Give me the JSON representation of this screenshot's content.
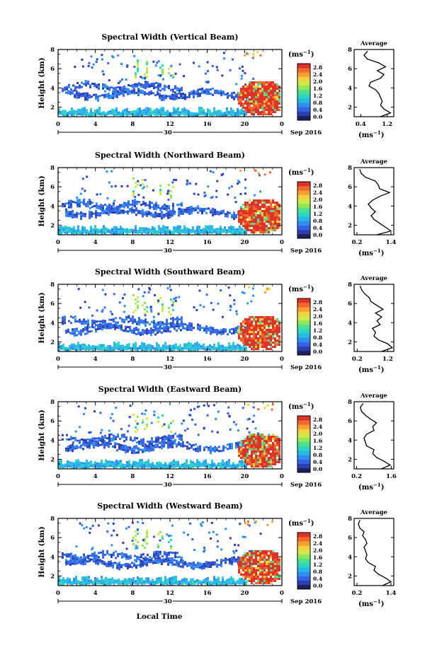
{
  "shared": {
    "ylabel": "Height (km)",
    "xlabel": "Local Time",
    "x_ticks": [
      "0",
      "4",
      "8",
      "12",
      "16",
      "20",
      "0"
    ],
    "y_ticks": [
      "2",
      "4",
      "6",
      "8"
    ],
    "date_day": "30",
    "date_month": "Sep 2016",
    "colorbar_unit_base": "(ms",
    "colorbar_unit_exp": "−1",
    "colorbar_unit_close": ")",
    "avg_title": "Average",
    "avg_unit_base": "(ms",
    "avg_unit_exp": "−1",
    "avg_unit_close": ")",
    "palette": [
      "#1f1f5e",
      "#2a3fb0",
      "#3563e8",
      "#2f8fef",
      "#26b9e6",
      "#29d6c2",
      "#4de08f",
      "#8fe85a",
      "#cfe84a",
      "#f2d23c",
      "#f6a032",
      "#f26a2a",
      "#e0322a"
    ]
  },
  "chart_data": [
    {
      "type": "heatmap",
      "title": "Spectral Width (Vertical Beam)",
      "colorbar_ticks": [
        "2.8",
        "2.4",
        "2.0",
        "1.6",
        "1.2",
        "0.8",
        "0.4",
        "0.0"
      ],
      "x_range_hours": [
        0,
        24
      ],
      "y_range_km": [
        1,
        8
      ],
      "average_profile": {
        "title": "Average",
        "x_ticks": [
          "0.4",
          "1.2"
        ],
        "x_range": [
          0.2,
          1.4
        ],
        "y_range_km": [
          1,
          8
        ],
        "height_km": [
          1.0,
          1.4,
          1.8,
          2.2,
          2.6,
          3.0,
          3.4,
          3.8,
          4.2,
          4.6,
          5.0,
          5.4,
          5.8,
          6.2,
          6.6,
          7.0,
          7.4,
          7.8
        ],
        "width": [
          1.0,
          1.3,
          1.1,
          1.0,
          1.05,
          1.0,
          0.95,
          0.85,
          0.65,
          0.7,
          1.0,
          1.1,
          0.9,
          1.15,
          0.95,
          0.6,
          0.5,
          0.6
        ]
      }
    },
    {
      "type": "heatmap",
      "title": "Spectral Width (Northward Beam)",
      "colorbar_ticks": [
        "2.8",
        "2.4",
        "2.0",
        "1.6",
        "1.2",
        "0.8",
        "0.4",
        "0.0"
      ],
      "x_range_hours": [
        0,
        24
      ],
      "y_range_km": [
        1,
        8
      ],
      "average_profile": {
        "title": "Average",
        "x_ticks": [
          "0.2",
          "1.4"
        ],
        "x_range": [
          0.1,
          1.5
        ],
        "y_range_km": [
          1,
          8
        ],
        "height_km": [
          1.0,
          1.4,
          1.8,
          2.2,
          2.6,
          3.0,
          3.4,
          3.8,
          4.2,
          4.6,
          5.0,
          5.4,
          5.8,
          6.2,
          6.6,
          7.0,
          7.4,
          7.8
        ],
        "width": [
          0.9,
          1.4,
          1.2,
          1.0,
          0.8,
          0.7,
          0.85,
          0.7,
          0.6,
          0.75,
          1.0,
          1.35,
          1.0,
          0.95,
          0.85,
          0.5,
          0.35,
          0.3
        ]
      }
    },
    {
      "type": "heatmap",
      "title": "Spectral Width (Southward Beam)",
      "colorbar_ticks": [
        "2.8",
        "2.4",
        "2.0",
        "1.6",
        "1.2",
        "0.8",
        "0.4",
        "0.0"
      ],
      "x_range_hours": [
        0,
        24
      ],
      "y_range_km": [
        1,
        8
      ],
      "average_profile": {
        "title": "Average",
        "x_ticks": [
          "0.2",
          "1.2"
        ],
        "x_range": [
          0.1,
          1.4
        ],
        "y_range_km": [
          1,
          8
        ],
        "height_km": [
          1.0,
          1.4,
          1.8,
          2.2,
          2.6,
          3.0,
          3.4,
          3.8,
          4.2,
          4.6,
          5.0,
          5.4,
          5.8,
          6.2,
          6.6,
          7.0,
          7.4,
          7.8
        ],
        "width": [
          1.0,
          1.35,
          1.2,
          0.9,
          0.75,
          0.8,
          0.7,
          0.95,
          0.85,
          1.0,
          0.8,
          1.05,
          0.85,
          0.65,
          0.6,
          0.45,
          0.35,
          0.3
        ]
      }
    },
    {
      "type": "heatmap",
      "title": "Spectral Width (Eastward Beam)",
      "colorbar_ticks": [
        "2.8",
        "2.4",
        "2.0",
        "1.6",
        "1.2",
        "0.8",
        "0.4",
        "0.0"
      ],
      "x_range_hours": [
        0,
        24
      ],
      "y_range_km": [
        1,
        8
      ],
      "average_profile": {
        "title": "Average",
        "x_ticks": [
          "0.2",
          "1.6"
        ],
        "x_range": [
          0.1,
          1.7
        ],
        "y_range_km": [
          1,
          8
        ],
        "height_km": [
          1.0,
          1.4,
          1.8,
          2.2,
          2.6,
          3.0,
          3.4,
          3.8,
          4.2,
          4.6,
          5.0,
          5.4,
          5.8,
          6.2,
          6.6,
          7.0,
          7.4,
          7.8
        ],
        "width": [
          1.2,
          1.55,
          1.3,
          1.0,
          0.85,
          0.9,
          0.6,
          0.55,
          0.5,
          0.6,
          0.9,
          0.85,
          1.0,
          0.75,
          0.55,
          0.4,
          0.35,
          0.45
        ]
      }
    },
    {
      "type": "heatmap",
      "title": "Spectral Width (Westward Beam)",
      "colorbar_ticks": [
        "2.8",
        "2.4",
        "2.0",
        "1.6",
        "1.2",
        "0.8",
        "0.4",
        "0.0"
      ],
      "x_range_hours": [
        0,
        24
      ],
      "y_range_km": [
        1,
        8
      ],
      "average_profile": {
        "title": "Average",
        "x_ticks": [
          "0.2",
          "1.4"
        ],
        "x_range": [
          0.1,
          1.5
        ],
        "y_range_km": [
          1,
          8
        ],
        "height_km": [
          1.0,
          1.4,
          1.8,
          2.2,
          2.6,
          3.0,
          3.4,
          3.8,
          4.2,
          4.6,
          5.0,
          5.4,
          5.8,
          6.2,
          6.6,
          7.0,
          7.4,
          7.8
        ],
        "width": [
          1.1,
          1.4,
          1.2,
          0.95,
          0.8,
          0.85,
          0.6,
          0.5,
          0.55,
          0.5,
          0.45,
          0.55,
          0.5,
          0.4,
          0.45,
          0.3,
          0.25,
          0.3
        ]
      }
    }
  ]
}
